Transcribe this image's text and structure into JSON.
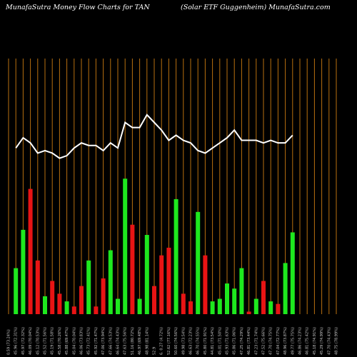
{
  "header": {
    "left": "MunafaSutra  Money Flow  Charts for TAN",
    "right": "(Solar ETF Guggenheim) MunafaSutra.com"
  },
  "colors": {
    "background": "#000000",
    "grid": "#b8700f",
    "up": "#1ee81e",
    "down": "#e81414",
    "line": "#ffffff"
  },
  "chart_data": {
    "type": "bar",
    "title": "MunafaSutra  Money Flow  Charts for TAN",
    "subtitle": "(Solar ETF Guggenheim) MunafaSutra.com",
    "ylim": [
      0,
      100
    ],
    "categories": [
      "0.59 (73.24%)",
      "45.96 (72.31%)",
      "45.97 (72.32%)",
      "46.09 (70.04%)",
      "45.12 (70.53%)",
      "45.52 (71.56%)",
      "45.19 (71.58%)",
      "45.58 (70.26%)",
      "45.88 (69.47%)",
      "45.04 (70.04%)",
      "46.06 (73.83%)",
      "45.73 (72.41%)",
      "45.92 (71.47%)",
      "47.06 (73.94%)",
      "47.66 (74.53%)",
      "46.64 (74.43%)",
      "47.63 (75.56%)",
      "51.16 (80.72%)",
      "46.97 (69.48%)",
      "48.98 (81.14%)",
      "52.9",
      "6. 0.27 (4.72%)",
      "52.62 (77.16%)",
      "50.60 (74.56%)",
      "49.98 (73.54%)",
      "46.63 (72.23%)",
      "46.70 (74.55%)",
      "45.80 (71.91%)",
      "44.81 (73.54%)",
      "45.01 (71.50%)",
      "45.93 (71.63%)",
      "45.86 (71.06%)",
      "47.25 (74.29%)",
      "46.81 (73.44%)",
      "47.23 (71.74%)",
      "47.52 (75.66%)",
      "47.70 (74.75%)",
      "47.04 (72.77%)",
      "48.96 (73.87%)",
      "49.77 (75.75%)",
      "46.86 (74.23%)",
      "46.81 (75.42%)",
      "45.18 (74.91%)",
      "45.29 (74.99%)",
      "47.70 (74.43%)",
      "48.75 (78.99%)"
    ],
    "series": [
      {
        "type": "bar",
        "colors": [
          "up",
          "up",
          "up",
          "down",
          "down",
          "up",
          "down",
          "down",
          "up",
          "down",
          "down",
          "up",
          "down",
          "down",
          "up",
          "up",
          "up",
          "down",
          "up",
          "up",
          "down",
          "down",
          "down",
          "up",
          "down",
          "down",
          "up",
          "down",
          "up",
          "up",
          "up",
          "up",
          "up",
          "down",
          "up",
          "down",
          "up",
          "down",
          "up",
          "up",
          "up",
          "down",
          "down",
          "down",
          "up",
          "up"
        ],
        "values": [
          0,
          18,
          33,
          49,
          21,
          7,
          13,
          8,
          5,
          3,
          11,
          21,
          3,
          14,
          25,
          6,
          53,
          35,
          6,
          31,
          11,
          23,
          26,
          45,
          8,
          5,
          40,
          23,
          5,
          6,
          12,
          10,
          18,
          1,
          6,
          13,
          5,
          4,
          20,
          32,
          0,
          0,
          0,
          0,
          0,
          0
        ]
      },
      {
        "type": "line",
        "values": [
          0,
          65,
          69,
          67,
          63,
          64,
          63,
          61,
          62,
          65,
          67,
          66,
          66,
          64,
          67,
          65,
          75,
          73,
          73,
          78,
          75,
          72,
          68,
          70,
          68,
          67,
          64,
          63,
          65,
          67,
          69,
          72,
          68,
          68,
          68,
          67,
          68,
          67,
          67,
          70,
          0,
          0,
          0,
          0,
          0,
          0
        ]
      }
    ]
  }
}
